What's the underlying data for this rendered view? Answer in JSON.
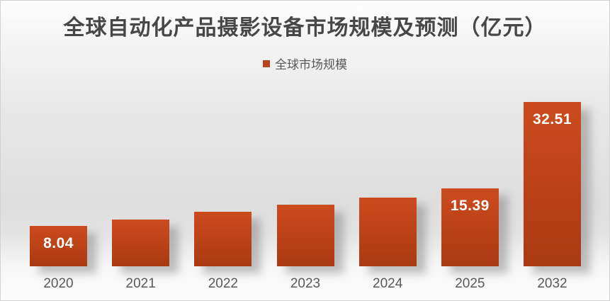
{
  "title": "全球自动化产品摄影设备市场规模及预测（亿元）",
  "legend": {
    "label": "全球市场规模"
  },
  "colors": {
    "title_text": "#474747",
    "axis_text": "#595959",
    "legend_marker": "#b8441c",
    "bar_top": "#cb4b1e",
    "bar_mid": "#bc4217",
    "bar_bottom": "#a93a12",
    "value_label_text": "#ffffff"
  },
  "chart_data": {
    "type": "bar",
    "title": "全球自动化产品摄影设备市场规模及预测（亿元）",
    "categories": [
      "2020",
      "2021",
      "2022",
      "2023",
      "2024",
      "2025",
      "2032"
    ],
    "series": [
      {
        "name": "全球市场规模",
        "values": [
          8.04,
          9.2,
          10.8,
          12.1,
          13.5,
          15.39,
          32.51
        ]
      }
    ],
    "data_labels": [
      "8.04",
      "",
      "",
      "",
      "",
      "15.39",
      "32.51"
    ],
    "labeled_points": {
      "2020": 8.04,
      "2025": 15.39,
      "2032": 32.51
    },
    "unlabeled_values_estimated_from_pixels": true,
    "xlabel": "",
    "ylabel": "",
    "ylim": [
      0,
      34
    ],
    "grid": false,
    "axis_lines": false,
    "legend_position": "top-center",
    "bar_color": "#bc4217",
    "bar_gradient": [
      "#cb4b1e",
      "#a93a12"
    ]
  }
}
